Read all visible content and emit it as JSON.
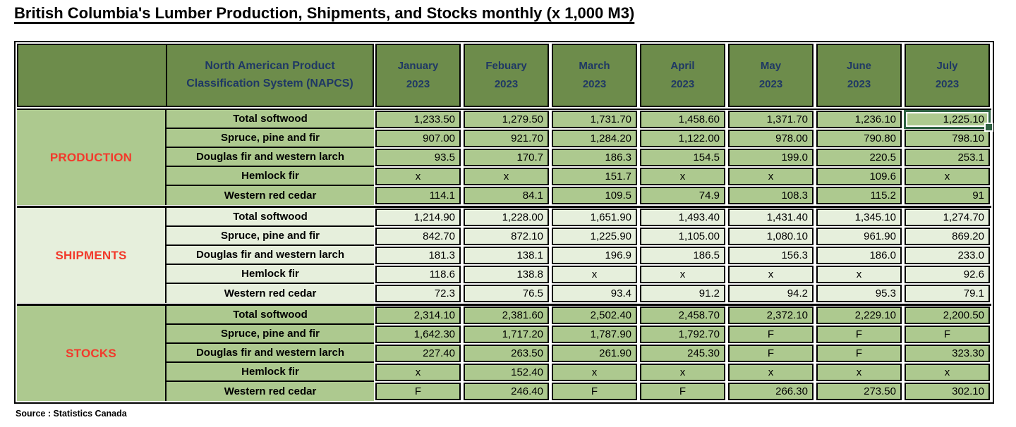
{
  "title": "British Columbia's Lumber Production, Shipments, and Stocks monthly (x 1,000 M3)",
  "source": "Source : Statistics Canada",
  "colors": {
    "header_green": "#6d8c4b",
    "section_green": "#adc98f",
    "section_pale_green": "#e6efdc",
    "header_text_navy": "#1f3864",
    "section_label_red": "#f23a2c",
    "selection_green": "#2e6142",
    "border_black": "#000000"
  },
  "selection": {
    "section_index": 0,
    "row_index": 0,
    "month_index": 6,
    "section": "PRODUCTION",
    "row": "Total softwood",
    "month": "July 2023",
    "cell_value": "1,225.10"
  },
  "table": {
    "napcs_header": "North American Product Classification System (NAPCS)",
    "months": [
      {
        "name": "January",
        "year": "2023"
      },
      {
        "name": "Febuary",
        "year": "2023"
      },
      {
        "name": "March",
        "year": "2023"
      },
      {
        "name": "April",
        "year": "2023"
      },
      {
        "name": "May",
        "year": "2023"
      },
      {
        "name": "June",
        "year": "2023"
      },
      {
        "name": "July",
        "year": "2023"
      }
    ],
    "sections": [
      {
        "name": "PRODUCTION",
        "rows": [
          {
            "label": "Total softwood",
            "values": [
              "1,233.50",
              "1,279.50",
              "1,731.70",
              "1,458.60",
              "1,371.70",
              "1,236.10",
              "1,225.10"
            ]
          },
          {
            "label": "Spruce, pine and fir",
            "values": [
              "907.00",
              "921.70",
              "1,284.20",
              "1,122.00",
              "978.00",
              "790.80",
              "798.10"
            ]
          },
          {
            "label": "Douglas fir and western larch",
            "values": [
              "93.5",
              "170.7",
              "186.3",
              "154.5",
              "199.0",
              "220.5",
              "253.1"
            ]
          },
          {
            "label": "Hemlock fir",
            "values": [
              "x",
              "x",
              "151.7",
              "x",
              "x",
              "109.6",
              "x"
            ]
          },
          {
            "label": "Western red cedar",
            "values": [
              "114.1",
              "84.1",
              "109.5",
              "74.9",
              "108.3",
              "115.2",
              "91"
            ]
          }
        ]
      },
      {
        "name": "SHIPMENTS",
        "rows": [
          {
            "label": "Total softwood",
            "values": [
              "1,214.90",
              "1,228.00",
              "1,651.90",
              "1,493.40",
              "1,431.40",
              "1,345.10",
              "1,274.70"
            ]
          },
          {
            "label": "Spruce, pine and fir",
            "values": [
              "842.70",
              "872.10",
              "1,225.90",
              "1,105.00",
              "1,080.10",
              "961.90",
              "869.20"
            ]
          },
          {
            "label": "Douglas fir and western larch",
            "values": [
              "181.3",
              "138.1",
              "196.9",
              "186.5",
              "156.3",
              "186.0",
              "233.0"
            ]
          },
          {
            "label": "Hemlock fir",
            "values": [
              "118.6",
              "138.8",
              "x",
              "x",
              "x",
              "x",
              "92.6"
            ]
          },
          {
            "label": "Western red cedar",
            "values": [
              "72.3",
              "76.5",
              "93.4",
              "91.2",
              "94.2",
              "95.3",
              "79.1"
            ]
          }
        ]
      },
      {
        "name": "STOCKS",
        "rows": [
          {
            "label": "Total softwood",
            "values": [
              "2,314.10",
              "2,381.60",
              "2,502.40",
              "2,458.70",
              "2,372.10",
              "2,229.10",
              "2,200.50"
            ]
          },
          {
            "label": "Spruce, pine and fir",
            "values": [
              "1,642.30",
              "1,717.20",
              "1,787.90",
              "1,792.70",
              "F",
              "F",
              "F"
            ]
          },
          {
            "label": "Douglas fir and western larch",
            "values": [
              "227.40",
              "263.50",
              "261.90",
              "245.30",
              "F",
              "F",
              "323.30"
            ]
          },
          {
            "label": "Hemlock fir",
            "values": [
              "x",
              "152.40",
              "x",
              "x",
              "x",
              "x",
              "x"
            ]
          },
          {
            "label": "Western red cedar",
            "values": [
              "F",
              "246.40",
              "F",
              "F",
              "266.30",
              "273.50",
              "302.10"
            ]
          }
        ]
      }
    ]
  }
}
